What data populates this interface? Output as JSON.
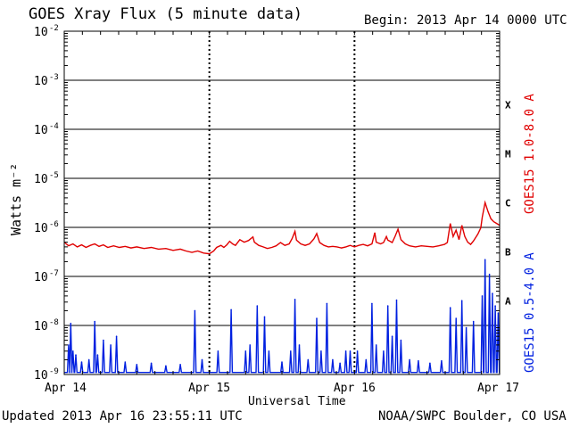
{
  "header": {
    "title": "GOES Xray Flux (5 minute data)",
    "begin": "Begin:  2013 Apr 14 0000 UTC"
  },
  "footer": {
    "updated": "Updated 2013 Apr 16 23:55:11 UTC",
    "credit": "NOAA/SWPC Boulder, CO USA"
  },
  "chart_data": {
    "type": "line",
    "title": "GOES Xray Flux (5 minute data)",
    "xlabel": "Universal Time",
    "ylabel": "Watts m⁻²",
    "yscale": "log",
    "ylim": [
      1e-09,
      0.01
    ],
    "xlim": [
      0,
      3
    ],
    "x_unit": "days since 2013 Apr 14 0000 UTC",
    "x_ticks": [
      {
        "x": 0,
        "label": "Apr 14"
      },
      {
        "x": 1,
        "label": "Apr 15"
      },
      {
        "x": 2,
        "label": "Apr 16"
      },
      {
        "x": 3,
        "label": "Apr 17"
      }
    ],
    "y_ticks": [
      {
        "exp": -9,
        "base": "10",
        "sup": "-9"
      },
      {
        "exp": -8,
        "base": "10",
        "sup": "-8"
      },
      {
        "exp": -7,
        "base": "10",
        "sup": "-7"
      },
      {
        "exp": -6,
        "base": "10",
        "sup": "-6"
      },
      {
        "exp": -5,
        "base": "10",
        "sup": "-5"
      },
      {
        "exp": -4,
        "base": "10",
        "sup": "-4"
      },
      {
        "exp": -3,
        "base": "10",
        "sup": "-3"
      },
      {
        "exp": -2,
        "base": "10",
        "sup": "-2"
      }
    ],
    "flare_classes": [
      {
        "label": "A",
        "exp": -7.5
      },
      {
        "label": "B",
        "exp": -6.5
      },
      {
        "label": "C",
        "exp": -5.5
      },
      {
        "label": "M",
        "exp": -4.5
      },
      {
        "label": "X",
        "exp": -3.5
      }
    ],
    "grid": true,
    "series": [
      {
        "name": "GOES15 1.0-8.0 A",
        "color": "#e00000",
        "points": [
          [
            0.0,
            5e-07
          ],
          [
            0.03,
            4.2e-07
          ],
          [
            0.06,
            4.6e-07
          ],
          [
            0.09,
            4e-07
          ],
          [
            0.12,
            4.4e-07
          ],
          [
            0.15,
            3.9e-07
          ],
          [
            0.18,
            4.3e-07
          ],
          [
            0.21,
            4.6e-07
          ],
          [
            0.24,
            4.1e-07
          ],
          [
            0.27,
            4.4e-07
          ],
          [
            0.3,
            3.9e-07
          ],
          [
            0.34,
            4.2e-07
          ],
          [
            0.38,
            3.9e-07
          ],
          [
            0.42,
            4.1e-07
          ],
          [
            0.46,
            3.8e-07
          ],
          [
            0.5,
            4e-07
          ],
          [
            0.55,
            3.7e-07
          ],
          [
            0.6,
            3.9e-07
          ],
          [
            0.65,
            3.6e-07
          ],
          [
            0.7,
            3.7e-07
          ],
          [
            0.75,
            3.4e-07
          ],
          [
            0.8,
            3.6e-07
          ],
          [
            0.84,
            3.3e-07
          ],
          [
            0.88,
            3.1e-07
          ],
          [
            0.92,
            3.3e-07
          ],
          [
            0.96,
            3e-07
          ],
          [
            1.0,
            2.9e-07
          ],
          [
            1.03,
            3.3e-07
          ],
          [
            1.05,
            3.9e-07
          ],
          [
            1.08,
            4.3e-07
          ],
          [
            1.1,
            3.9e-07
          ],
          [
            1.12,
            4.4e-07
          ],
          [
            1.14,
            5.2e-07
          ],
          [
            1.16,
            4.6e-07
          ],
          [
            1.18,
            4.3e-07
          ],
          [
            1.21,
            5.6e-07
          ],
          [
            1.24,
            5e-07
          ],
          [
            1.27,
            5.4e-07
          ],
          [
            1.3,
            6.4e-07
          ],
          [
            1.31,
            5e-07
          ],
          [
            1.34,
            4.3e-07
          ],
          [
            1.37,
            4e-07
          ],
          [
            1.4,
            3.7e-07
          ],
          [
            1.43,
            3.9e-07
          ],
          [
            1.46,
            4.2e-07
          ],
          [
            1.49,
            4.9e-07
          ],
          [
            1.52,
            4.3e-07
          ],
          [
            1.55,
            4.6e-07
          ],
          [
            1.57,
            5.9e-07
          ],
          [
            1.59,
            8.3e-07
          ],
          [
            1.6,
            5.5e-07
          ],
          [
            1.63,
            4.6e-07
          ],
          [
            1.66,
            4.3e-07
          ],
          [
            1.69,
            4.6e-07
          ],
          [
            1.72,
            5.8e-07
          ],
          [
            1.74,
            7.5e-07
          ],
          [
            1.76,
            4.9e-07
          ],
          [
            1.79,
            4.3e-07
          ],
          [
            1.82,
            4e-07
          ],
          [
            1.85,
            4.1e-07
          ],
          [
            1.88,
            4e-07
          ],
          [
            1.91,
            3.8e-07
          ],
          [
            1.94,
            4e-07
          ],
          [
            1.97,
            4.3e-07
          ],
          [
            2.0,
            4e-07
          ],
          [
            2.03,
            4.3e-07
          ],
          [
            2.06,
            4.5e-07
          ],
          [
            2.09,
            4.2e-07
          ],
          [
            2.12,
            4.6e-07
          ],
          [
            2.14,
            7.8e-07
          ],
          [
            2.15,
            5e-07
          ],
          [
            2.18,
            4.6e-07
          ],
          [
            2.2,
            4.9e-07
          ],
          [
            2.22,
            6.5e-07
          ],
          [
            2.23,
            5.5e-07
          ],
          [
            2.26,
            4.9e-07
          ],
          [
            2.28,
            6.6e-07
          ],
          [
            2.3,
            9.2e-07
          ],
          [
            2.32,
            5.6e-07
          ],
          [
            2.35,
            4.6e-07
          ],
          [
            2.38,
            4.2e-07
          ],
          [
            2.42,
            4e-07
          ],
          [
            2.46,
            4.2e-07
          ],
          [
            2.5,
            4.1e-07
          ],
          [
            2.54,
            4e-07
          ],
          [
            2.58,
            4.2e-07
          ],
          [
            2.62,
            4.5e-07
          ],
          [
            2.64,
            4.9e-07
          ],
          [
            2.66,
            1.2e-06
          ],
          [
            2.68,
            6.5e-07
          ],
          [
            2.7,
            8.8e-07
          ],
          [
            2.72,
            5.6e-07
          ],
          [
            2.74,
            1.1e-06
          ],
          [
            2.76,
            6.5e-07
          ],
          [
            2.78,
            5e-07
          ],
          [
            2.8,
            4.5e-07
          ],
          [
            2.82,
            5.3e-07
          ],
          [
            2.85,
            7.3e-07
          ],
          [
            2.87,
            9.8e-07
          ],
          [
            2.88,
            1.6e-06
          ],
          [
            2.9,
            3.2e-06
          ],
          [
            2.92,
            2.1e-06
          ],
          [
            2.94,
            1.5e-06
          ],
          [
            2.96,
            1.3e-06
          ],
          [
            2.98,
            1.2e-06
          ],
          [
            3.0,
            1.1e-06
          ]
        ]
      },
      {
        "name": "GOES15 0.5-4.0 A",
        "color": "#0020e0",
        "baseline": 1.1e-09,
        "spikes": [
          [
            0.03,
            4e-09
          ],
          [
            0.045,
            1.1e-08
          ],
          [
            0.06,
            3e-09
          ],
          [
            0.08,
            2.5e-09
          ],
          [
            0.12,
            1.8e-09
          ],
          [
            0.17,
            2e-09
          ],
          [
            0.21,
            1.2e-08
          ],
          [
            0.23,
            2.5e-09
          ],
          [
            0.27,
            5e-09
          ],
          [
            0.32,
            4e-09
          ],
          [
            0.36,
            6e-09
          ],
          [
            0.42,
            1.8e-09
          ],
          [
            0.5,
            1.6e-09
          ],
          [
            0.6,
            1.7e-09
          ],
          [
            0.7,
            1.5e-09
          ],
          [
            0.8,
            1.6e-09
          ],
          [
            0.9,
            2e-08
          ],
          [
            0.95,
            2e-09
          ],
          [
            1.06,
            3e-09
          ],
          [
            1.15,
            2.1e-08
          ],
          [
            1.25,
            3e-09
          ],
          [
            1.28,
            4e-09
          ],
          [
            1.33,
            2.5e-08
          ],
          [
            1.38,
            1.5e-08
          ],
          [
            1.41,
            3e-09
          ],
          [
            1.5,
            1.8e-09
          ],
          [
            1.56,
            3e-09
          ],
          [
            1.59,
            3.4e-08
          ],
          [
            1.62,
            4e-09
          ],
          [
            1.68,
            2e-09
          ],
          [
            1.74,
            1.4e-08
          ],
          [
            1.77,
            3e-09
          ],
          [
            1.81,
            2.8e-08
          ],
          [
            1.85,
            2e-09
          ],
          [
            1.9,
            1.7e-09
          ],
          [
            1.94,
            3e-09
          ],
          [
            1.97,
            3e-09
          ],
          [
            2.02,
            3e-09
          ],
          [
            2.08,
            2e-09
          ],
          [
            2.12,
            2.8e-08
          ],
          [
            2.15,
            4e-09
          ],
          [
            2.2,
            3e-09
          ],
          [
            2.23,
            2.5e-08
          ],
          [
            2.26,
            6e-09
          ],
          [
            2.29,
            3.3e-08
          ],
          [
            2.32,
            5e-09
          ],
          [
            2.38,
            2e-09
          ],
          [
            2.44,
            1.9e-09
          ],
          [
            2.52,
            1.7e-09
          ],
          [
            2.6,
            1.9e-09
          ],
          [
            2.66,
            2.3e-08
          ],
          [
            2.7,
            1.4e-08
          ],
          [
            2.74,
            3.2e-08
          ],
          [
            2.77,
            9e-09
          ],
          [
            2.82,
            1.2e-08
          ],
          [
            2.88,
            4e-08
          ],
          [
            2.9,
            2.2e-07
          ],
          [
            2.93,
            1.1e-07
          ],
          [
            2.95,
            4.5e-08
          ],
          [
            2.97,
            2.5e-08
          ],
          [
            2.99,
            1.8e-08
          ]
        ]
      }
    ]
  }
}
